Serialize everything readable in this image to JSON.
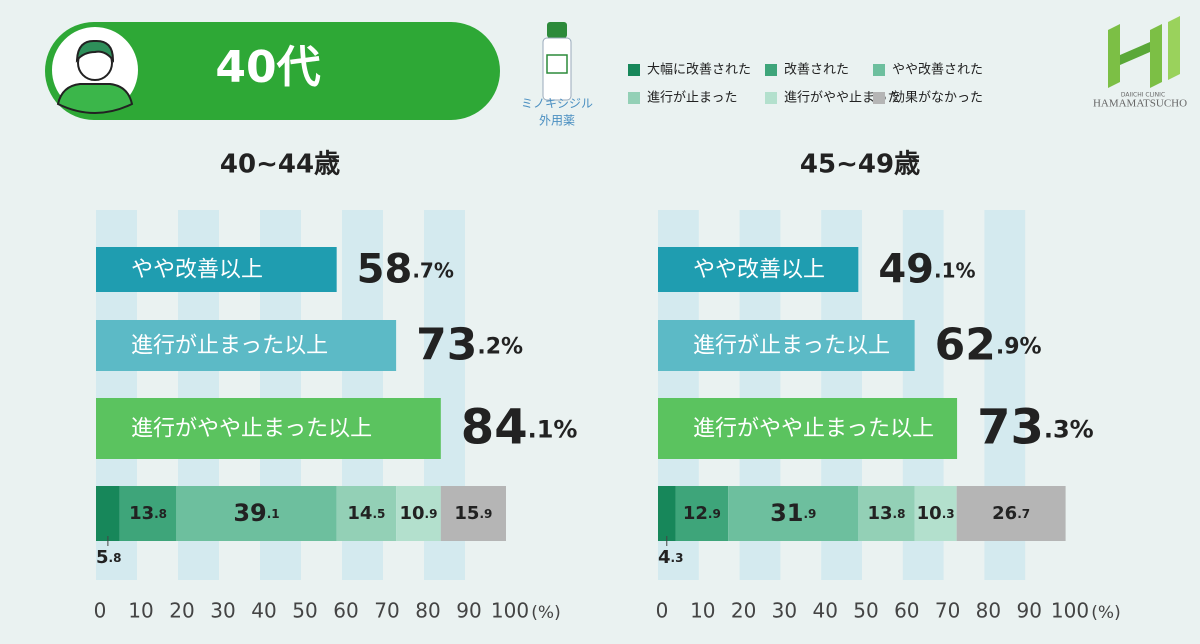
{
  "header": {
    "title": "40代",
    "product": [
      "ミノキシジル",
      "外用薬"
    ],
    "logo": [
      "DAIICHI CLINIC",
      "HAMAMATSUCHO"
    ]
  },
  "legend": [
    {
      "name": "大幅に改善された",
      "color": "#17875a"
    },
    {
      "name": "改善された",
      "color": "#3ea57a"
    },
    {
      "name": "やや改善された",
      "color": "#6dbf9e"
    },
    {
      "name": "進行が止まった",
      "color": "#93d0b6"
    },
    {
      "name": "進行がやや止まった",
      "color": "#b3e0cd"
    },
    {
      "name": "効果がなかった",
      "color": "#b5b5b5"
    }
  ],
  "chart_data": [
    {
      "type": "bar",
      "orientation": "horizontal",
      "title": "40~44歳",
      "categories": [
        "やや改善以上",
        "進行が止まった以上",
        "進行がやや止まった以上"
      ],
      "values": [
        58.7,
        73.2,
        84.1
      ],
      "value_labels": [
        "58.7%",
        "73.2%",
        "84.1%"
      ],
      "colors": [
        "#1f9db0",
        "#5cbac6",
        "#5bc35f"
      ],
      "stack": {
        "values": [
          5.8,
          13.8,
          39.1,
          14.5,
          10.9,
          15.9
        ]
      },
      "xlim": [
        0,
        100
      ],
      "xticks": [
        0,
        10,
        20,
        30,
        40,
        50,
        60,
        70,
        80,
        90,
        100
      ],
      "x_unit": "(%)",
      "grid_bands": true
    },
    {
      "type": "bar",
      "orientation": "horizontal",
      "title": "45~49歳",
      "categories": [
        "やや改善以上",
        "進行が止まった以上",
        "進行がやや止まった以上"
      ],
      "values": [
        49.1,
        62.9,
        73.3
      ],
      "value_labels": [
        "49.1%",
        "62.9%",
        "73.3%"
      ],
      "colors": [
        "#1f9db0",
        "#5cbac6",
        "#5bc35f"
      ],
      "stack": {
        "values": [
          4.3,
          12.9,
          31.9,
          13.8,
          10.3,
          26.7
        ]
      },
      "xlim": [
        0,
        100
      ],
      "xticks": [
        0,
        10,
        20,
        30,
        40,
        50,
        60,
        70,
        80,
        90,
        100
      ],
      "x_unit": "(%)",
      "grid_bands": true
    }
  ]
}
